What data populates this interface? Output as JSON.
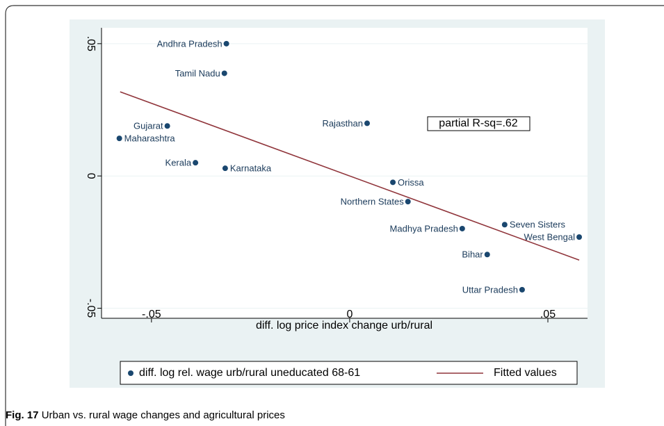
{
  "chart_data": {
    "type": "scatter",
    "xlabel": "diff. log price index change urb/rural",
    "annotation": "partial R-sq=.62",
    "xlim": [
      -0.0626,
      0.06
    ],
    "ylim": [
      -0.0538,
      0.056
    ],
    "xticks": [
      {
        "value": -0.05,
        "label": "-.05"
      },
      {
        "value": 0,
        "label": "0"
      },
      {
        "value": 0.05,
        "label": ".05"
      }
    ],
    "yticks": [
      {
        "value": -0.05,
        "label": "-.05"
      },
      {
        "value": 0,
        "label": "0"
      },
      {
        "value": 0.05,
        "label": ".05"
      }
    ],
    "grid": true,
    "series": [
      {
        "name": "diff. log rel. wage urb/rural uneducated 68-61",
        "color": "#1a476f",
        "kind": "points",
        "point_labels": [
          "Andhra Pradesh",
          "Tamil Nadu",
          "Gujarat",
          "Maharashtra",
          "Kerala",
          "Karnataka",
          "Rajasthan",
          "Orissa",
          "Northern States",
          "Madhya Pradesh",
          "Seven Sisters",
          "West Bengal",
          "Bihar",
          "Uttar Pradesh"
        ],
        "x": [
          -0.0311,
          -0.0316,
          -0.046,
          -0.0581,
          -0.0389,
          -0.0314,
          0.0044,
          0.0109,
          0.0147,
          0.0284,
          0.0391,
          0.0579,
          0.0347,
          0.0435
        ],
        "values": [
          0.05,
          0.0388,
          0.0189,
          0.0142,
          0.005,
          0.0029,
          0.0199,
          -0.0024,
          -0.0097,
          -0.0199,
          -0.0184,
          -0.0231,
          -0.0297,
          -0.043
        ]
      },
      {
        "name": "Fitted values",
        "color": "#90353b",
        "kind": "line",
        "x": [
          -0.0579,
          0.0579
        ],
        "values": [
          0.0318,
          -0.0318
        ]
      }
    ]
  },
  "caption": {
    "label": "Fig. 17",
    "text": "Urban vs. rural wage changes and agricultural prices"
  }
}
